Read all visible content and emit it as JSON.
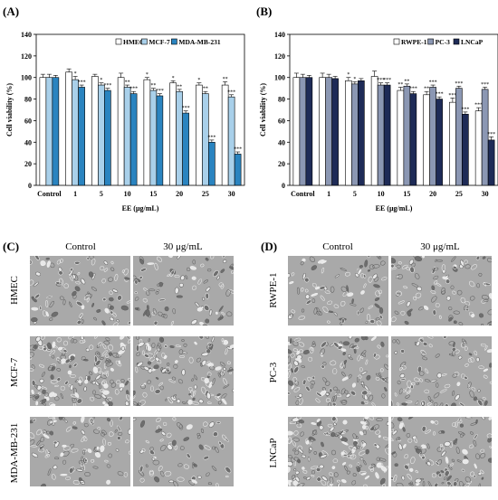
{
  "panels": {
    "A": "(A)",
    "B": "(B)",
    "C": "(C)",
    "D": "(D)"
  },
  "chart_data": [
    {
      "type": "bar",
      "panel": "A",
      "ylabel": "Cell viability (%)",
      "xlabel": "EE (μg/mL)",
      "ylim": [
        0,
        140
      ],
      "yticks": [
        0,
        20,
        40,
        60,
        80,
        100,
        120,
        140
      ],
      "categories": [
        "Control",
        "1",
        "5",
        "10",
        "15",
        "20",
        "25",
        "30"
      ],
      "legend_position": "top-right",
      "series": [
        {
          "name": "HMEC",
          "color": "#ffffff",
          "values": [
            100,
            105,
            101,
            100,
            98,
            95,
            93,
            93
          ],
          "errors": [
            3,
            3,
            2,
            4,
            2,
            2,
            2,
            3
          ],
          "sig": [
            "",
            "",
            "",
            "",
            "*",
            "*",
            "*",
            "**"
          ]
        },
        {
          "name": "MCF-7",
          "color": "#a9d0ea",
          "values": [
            100,
            98,
            93,
            91,
            88,
            87,
            85,
            82
          ],
          "errors": [
            3,
            3,
            2,
            2,
            2,
            2,
            2,
            2
          ],
          "sig": [
            "",
            "*",
            "*",
            "**",
            "**",
            "**",
            "**",
            "***"
          ]
        },
        {
          "name": "MDA-MB-231",
          "color": "#2a84c0",
          "values": [
            100,
            91,
            88,
            85,
            83,
            67,
            40,
            29
          ],
          "errors": [
            2,
            2,
            2,
            2,
            2,
            2,
            2,
            2
          ],
          "sig": [
            "",
            "***",
            "***",
            "***",
            "***",
            "***",
            "***",
            "***"
          ]
        }
      ]
    },
    {
      "type": "bar",
      "panel": "B",
      "ylabel": "Cell viability (%)",
      "xlabel": "EE (μg/mL)",
      "ylim": [
        0,
        140
      ],
      "yticks": [
        0,
        20,
        40,
        60,
        80,
        100,
        120,
        140
      ],
      "categories": [
        "Control",
        "1",
        "5",
        "10",
        "15",
        "20",
        "25",
        "30"
      ],
      "legend_position": "top-right",
      "series": [
        {
          "name": "RWPE-1",
          "color": "#ffffff",
          "values": [
            100,
            100,
            97,
            101,
            88,
            84,
            77,
            69
          ],
          "errors": [
            4,
            4,
            3,
            5,
            3,
            3,
            4,
            3
          ],
          "sig": [
            "",
            "",
            "*",
            "",
            "**",
            "**",
            "***",
            "***"
          ]
        },
        {
          "name": "PC-3",
          "color": "#8b97b3",
          "values": [
            100,
            100,
            94,
            93,
            92,
            91,
            90,
            89
          ],
          "errors": [
            3,
            3,
            2,
            2,
            2,
            2,
            2,
            2
          ],
          "sig": [
            "",
            "",
            "*",
            "***",
            "**",
            "***",
            "***",
            "***"
          ]
        },
        {
          "name": "LNCaP",
          "color": "#1e2b57",
          "values": [
            100,
            99,
            97,
            93,
            85,
            80,
            66,
            42
          ],
          "errors": [
            2,
            2,
            2,
            2,
            2,
            2,
            2,
            3
          ],
          "sig": [
            "",
            "",
            "",
            "***",
            "***",
            "***",
            "***",
            "***"
          ]
        }
      ]
    }
  ],
  "micrographs": {
    "C": {
      "columns": [
        "Control",
        "30 μg/mL"
      ],
      "rows": [
        "HMEC",
        "MCF-7",
        "MDA-MB-231"
      ]
    },
    "D": {
      "columns": [
        "Control",
        "30 μg/mL"
      ],
      "rows": [
        "RWPE-1",
        "PC-3",
        "LNCaP"
      ]
    }
  }
}
